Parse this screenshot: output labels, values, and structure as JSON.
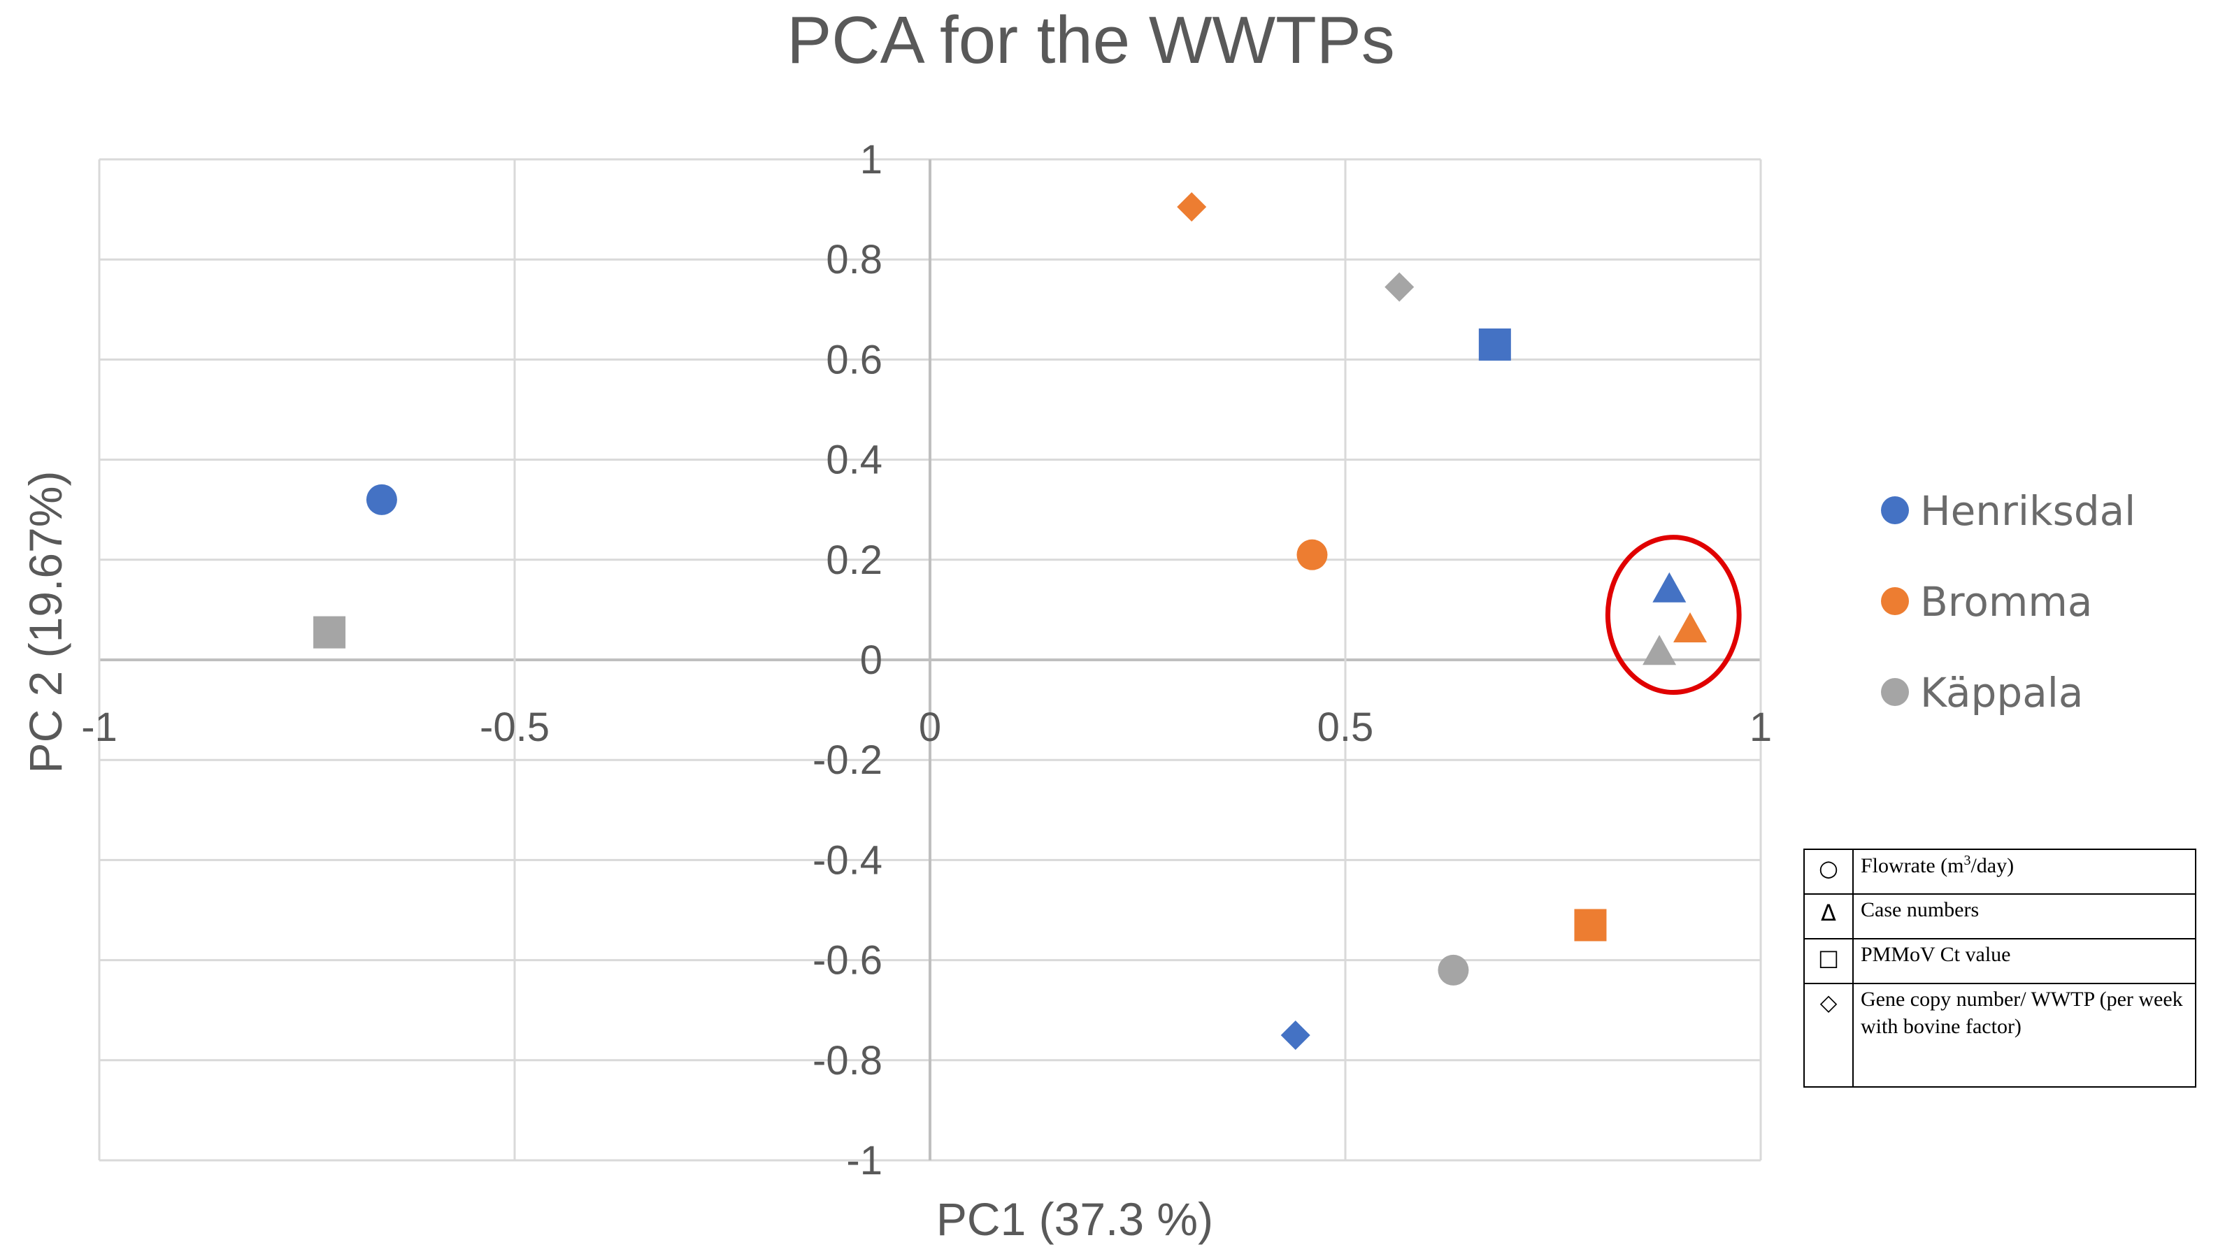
{
  "chart_data": {
    "type": "scatter",
    "title": "PCA for the WWTPs",
    "xlabel": "PC1 (37.3 %)",
    "ylabel": "PC 2 (19.67%)",
    "xlim": [
      -1,
      1
    ],
    "ylim": [
      -1,
      1
    ],
    "x_ticks": [
      -1,
      -0.5,
      0,
      0.5,
      1
    ],
    "x_tick_labels": [
      "-1",
      "-0.5",
      "0",
      "0.5",
      "1"
    ],
    "y_ticks": [
      1,
      0.8,
      0.6,
      0.4,
      0.2,
      0,
      -0.2,
      -0.4,
      -0.6,
      -0.8,
      -1
    ],
    "y_tick_labels": [
      "1",
      "0.8",
      "0.6",
      "0.4",
      "0.2",
      "0",
      "-0.2",
      "-0.4",
      "-0.6",
      "-0.8",
      "-1"
    ],
    "grid": true,
    "legend_position": "right",
    "series": [
      {
        "name": "Henriksdal",
        "color": "#4472C4",
        "points": [
          {
            "variable": "Flowrate",
            "marker": "circle",
            "x": -0.66,
            "y": 0.32
          },
          {
            "variable": "Case numbers",
            "marker": "triangle",
            "x": 0.89,
            "y": 0.14
          },
          {
            "variable": "PMMoV Ct value",
            "marker": "square",
            "x": 0.68,
            "y": 0.63
          },
          {
            "variable": "Gene copy number",
            "marker": "diamond",
            "x": 0.44,
            "y": -0.75
          }
        ]
      },
      {
        "name": "Bromma",
        "color": "#ED7D31",
        "points": [
          {
            "variable": "Flowrate",
            "marker": "circle",
            "x": 0.46,
            "y": 0.21
          },
          {
            "variable": "Case numbers",
            "marker": "triangle",
            "x": 0.915,
            "y": 0.06
          },
          {
            "variable": "PMMoV Ct value",
            "marker": "square",
            "x": 0.795,
            "y": -0.53
          },
          {
            "variable": "Gene copy number",
            "marker": "diamond",
            "x": 0.315,
            "y": 0.905
          }
        ]
      },
      {
        "name": "Käppala",
        "color": "#A5A5A5",
        "points": [
          {
            "variable": "Flowrate",
            "marker": "circle",
            "x": 0.63,
            "y": -0.62
          },
          {
            "variable": "Case numbers",
            "marker": "triangle",
            "x": 0.878,
            "y": 0.015
          },
          {
            "variable": "PMMoV Ct value",
            "marker": "square",
            "x": -0.723,
            "y": 0.055
          },
          {
            "variable": "Gene copy number",
            "marker": "diamond",
            "x": 0.565,
            "y": 0.745
          }
        ]
      }
    ],
    "annotation": {
      "type": "ellipse",
      "color": "#E00000",
      "center": [
        0.895,
        0.09
      ],
      "rx": 0.079,
      "ry": 0.155
    }
  },
  "marker_key": {
    "rows": [
      {
        "shape": "○",
        "label_pre": "Flowrate (m",
        "label_sup": "3",
        "label_post": "/day)"
      },
      {
        "shape": "Δ",
        "label": "Case numbers"
      },
      {
        "shape": "□",
        "label": "PMMoV Ct value"
      },
      {
        "shape": "◇",
        "label": "Gene copy number/ WWTP (per week with bovine factor)"
      }
    ]
  }
}
